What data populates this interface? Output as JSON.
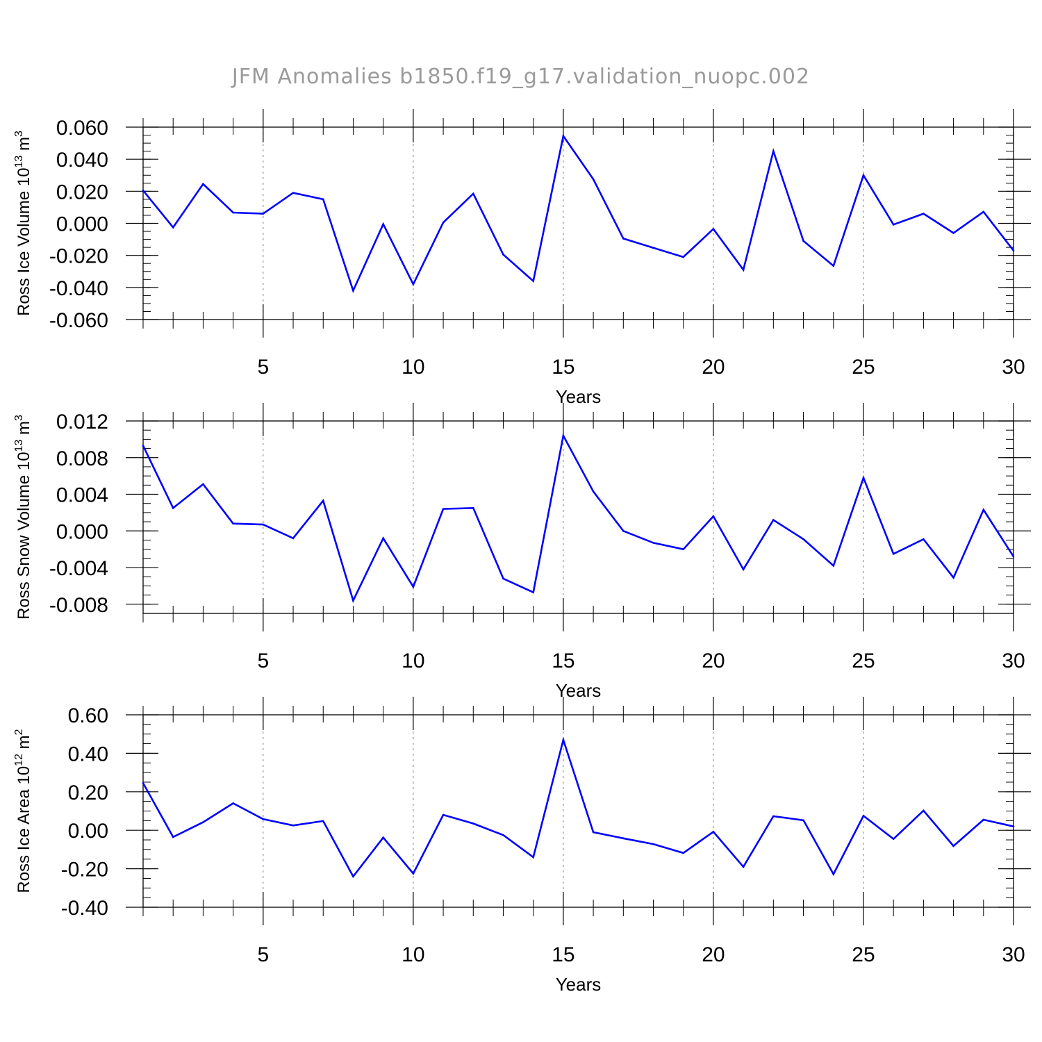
{
  "title": "JFM Anomalies b1850.f19_g17.validation_nuopc.002",
  "colors": {
    "line": "#0000ff",
    "axis": "#000000",
    "grid": "#808080",
    "title": "#9a9a9a"
  },
  "chart_data": [
    {
      "type": "line",
      "ylabel": {
        "text": "Ross Ice Volume 10",
        "sup": "13",
        "unit": " m",
        "unit_sup": "3"
      },
      "xlabel": "Years",
      "xlim": [
        1,
        30
      ],
      "ylim": [
        -0.06,
        0.06
      ],
      "yticks": [
        -0.06,
        -0.04,
        -0.02,
        0.0,
        0.02,
        0.04,
        0.06
      ],
      "ytick_labels": [
        "-0.060",
        "-0.040",
        "-0.020",
        "0.000",
        "0.020",
        "0.040",
        "0.060"
      ],
      "yminor_step": 0.005,
      "xticks": [
        5,
        10,
        15,
        20,
        25,
        30
      ],
      "xtick_labels": [
        "5",
        "10",
        "15",
        "20",
        "25",
        "30"
      ],
      "x": [
        1,
        2,
        3,
        4,
        5,
        6,
        7,
        8,
        9,
        10,
        11,
        12,
        13,
        14,
        15,
        16,
        17,
        18,
        19,
        20,
        21,
        22,
        23,
        24,
        25,
        26,
        27,
        28,
        29,
        30
      ],
      "values": [
        0.0205,
        -0.0025,
        0.0245,
        0.0067,
        0.006,
        0.019,
        0.015,
        -0.042,
        -0.0005,
        -0.038,
        0.0005,
        0.0185,
        -0.0195,
        -0.036,
        0.0545,
        0.0275,
        -0.0095,
        -0.0153,
        -0.021,
        -0.0035,
        -0.029,
        0.045,
        -0.011,
        -0.0265,
        0.03,
        -0.0008,
        0.006,
        -0.006,
        0.0072,
        -0.017
      ]
    },
    {
      "type": "line",
      "ylabel": {
        "text": "Ross Snow Volume 10",
        "sup": "13",
        "unit": " m",
        "unit_sup": "3"
      },
      "xlabel": "Years",
      "xlim": [
        1,
        30
      ],
      "ylim": [
        -0.009,
        0.012
      ],
      "yticks": [
        -0.008,
        -0.004,
        0.0,
        0.004,
        0.008,
        0.012
      ],
      "ytick_labels": [
        "-0.008",
        "-0.004",
        "0.000",
        "0.004",
        "0.008",
        "0.012"
      ],
      "yminor_step": 0.001,
      "xticks": [
        5,
        10,
        15,
        20,
        25,
        30
      ],
      "xtick_labels": [
        "5",
        "10",
        "15",
        "20",
        "25",
        "30"
      ],
      "x": [
        1,
        2,
        3,
        4,
        5,
        6,
        7,
        8,
        9,
        10,
        11,
        12,
        13,
        14,
        15,
        16,
        17,
        18,
        19,
        20,
        21,
        22,
        23,
        24,
        25,
        26,
        27,
        28,
        29,
        30
      ],
      "values": [
        0.0093,
        0.0025,
        0.0051,
        0.0008,
        0.0007,
        -0.0008,
        0.0033,
        -0.0076,
        -0.0008,
        -0.0061,
        0.0024,
        0.0025,
        -0.0052,
        -0.0067,
        0.0104,
        0.0043,
        0.0,
        -0.0013,
        -0.002,
        0.0016,
        -0.0042,
        0.0012,
        -0.0009,
        -0.0038,
        0.0058,
        -0.0025,
        -0.0009,
        -0.0051,
        0.0023,
        -0.0028
      ]
    },
    {
      "type": "line",
      "ylabel": {
        "text": "Ross Ice Area 10",
        "sup": "12",
        "unit": " m",
        "unit_sup": "2"
      },
      "xlabel": "Years",
      "xlim": [
        1,
        30
      ],
      "ylim": [
        -0.4,
        0.6
      ],
      "yticks": [
        -0.4,
        -0.2,
        0.0,
        0.2,
        0.4,
        0.6
      ],
      "ytick_labels": [
        "-0.40",
        "-0.20",
        "0.00",
        "0.20",
        "0.40",
        "0.60"
      ],
      "yminor_step": 0.05,
      "xticks": [
        5,
        10,
        15,
        20,
        25,
        30
      ],
      "xtick_labels": [
        "5",
        "10",
        "15",
        "20",
        "25",
        "30"
      ],
      "x": [
        1,
        2,
        3,
        4,
        5,
        6,
        7,
        8,
        9,
        10,
        11,
        12,
        13,
        14,
        15,
        16,
        17,
        18,
        19,
        20,
        21,
        22,
        23,
        24,
        25,
        26,
        27,
        28,
        29,
        30
      ],
      "values": [
        0.245,
        -0.035,
        0.042,
        0.14,
        0.058,
        0.025,
        0.048,
        -0.24,
        -0.038,
        -0.225,
        0.08,
        0.035,
        -0.025,
        -0.14,
        0.47,
        -0.01,
        -0.042,
        -0.072,
        -0.118,
        -0.008,
        -0.19,
        0.073,
        0.052,
        -0.228,
        0.075,
        -0.045,
        0.102,
        -0.082,
        0.055,
        0.02
      ]
    }
  ]
}
